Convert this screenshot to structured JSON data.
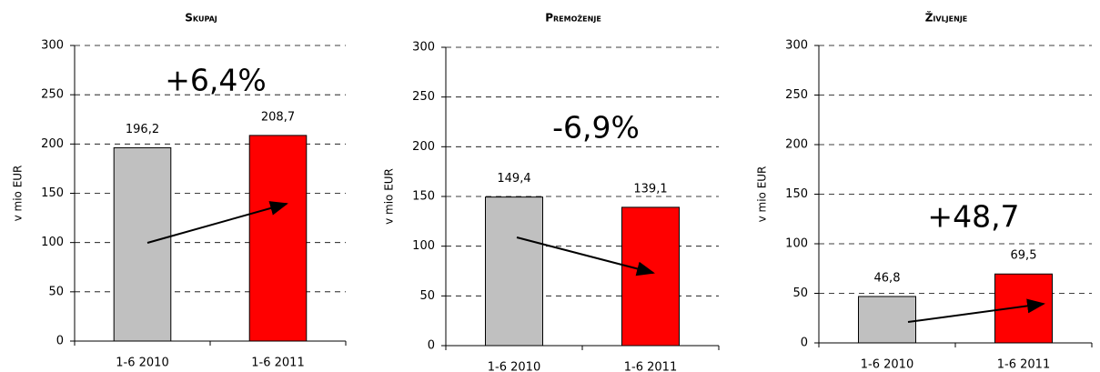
{
  "chart_data": [
    {
      "type": "bar",
      "title": "Skupaj",
      "ylabel": "v mio EUR",
      "categories": [
        "1-6 2010",
        "1-6 2011"
      ],
      "values": [
        196.2,
        208.7
      ],
      "value_labels": [
        "196,2",
        "208,7"
      ],
      "colors": [
        "#c0c0c0",
        "#ff0000"
      ],
      "annotation": "+6,4%",
      "ylim": [
        0,
        300
      ],
      "yticks": [
        0,
        50,
        100,
        150,
        200,
        250,
        300
      ],
      "grid": true
    },
    {
      "type": "bar",
      "title": "Premoženje",
      "ylabel": "v mio EUR",
      "categories": [
        "1-6 2010",
        "1-6 2011"
      ],
      "values": [
        149.4,
        139.1
      ],
      "value_labels": [
        "149,4",
        "139,1"
      ],
      "colors": [
        "#c0c0c0",
        "#ff0000"
      ],
      "annotation": "-6,9%",
      "ylim": [
        0,
        300
      ],
      "yticks": [
        0,
        50,
        100,
        150,
        200,
        250,
        300
      ],
      "grid": true
    },
    {
      "type": "bar",
      "title": "Življenje",
      "ylabel": "v mio EUR",
      "categories": [
        "1-6 2010",
        "1-6 2011"
      ],
      "values": [
        46.8,
        69.5
      ],
      "value_labels": [
        "46,8",
        "69,5"
      ],
      "colors": [
        "#c0c0c0",
        "#ff0000"
      ],
      "annotation": "+48,7",
      "ylim": [
        0,
        300
      ],
      "yticks": [
        0,
        50,
        100,
        150,
        200,
        250,
        300
      ],
      "grid": true
    }
  ]
}
